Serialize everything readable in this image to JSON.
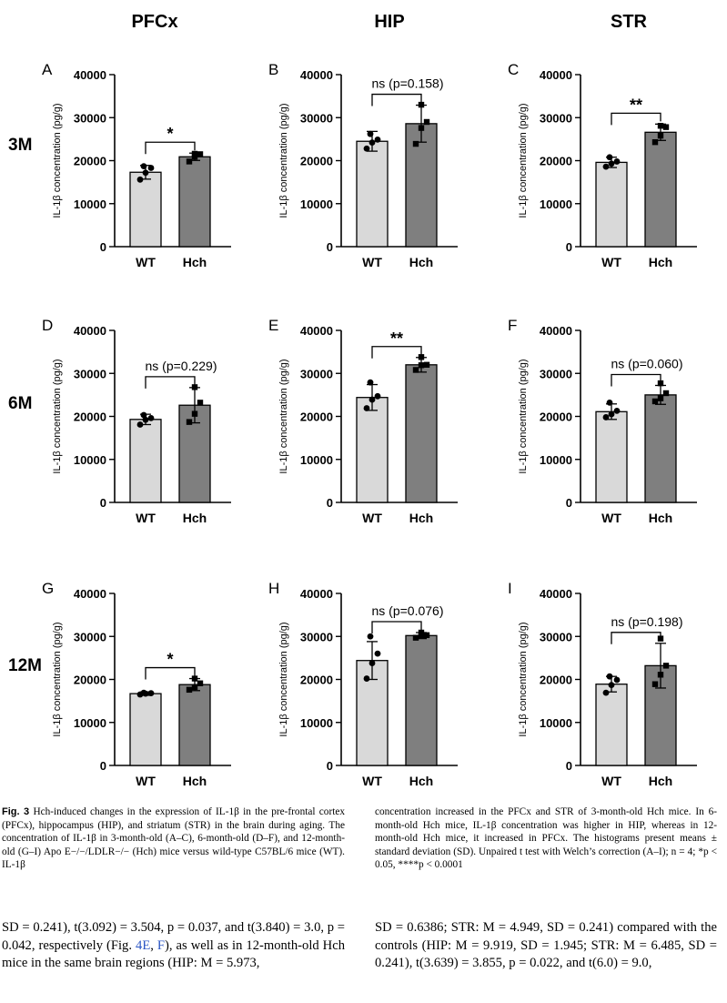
{
  "column_titles": [
    "PFCx",
    "HIP",
    "STR"
  ],
  "row_labels": [
    "3M",
    "6M",
    "12M"
  ],
  "colors": {
    "wt_bar": "#d9d9d9",
    "hch_bar": "#7f7f7f",
    "ink": "#000000",
    "link": "#2a55c4"
  },
  "chart_data": [
    {
      "panel": "A",
      "type": "bar",
      "categories": [
        "WT",
        "Hch"
      ],
      "values": [
        17300,
        20900
      ],
      "sd": [
        1600,
        850
      ],
      "points": [
        [
          15600,
          17200,
          18300,
          18700
        ],
        [
          19800,
          20900,
          21500,
          21600
        ]
      ],
      "ylabel": "IL-1β concentration (pg/g)",
      "yticks": [
        0,
        10000,
        20000,
        30000,
        40000
      ],
      "ylim": [
        0,
        40000
      ],
      "significance": "*"
    },
    {
      "panel": "B",
      "type": "bar",
      "categories": [
        "WT",
        "Hch"
      ],
      "values": [
        24500,
        28600
      ],
      "sd": [
        2300,
        4300
      ],
      "points": [
        [
          22800,
          24200,
          24900,
          26200
        ],
        [
          23900,
          27600,
          29000,
          33000
        ]
      ],
      "ylabel": "IL-1β concentration (pg/g)",
      "yticks": [
        0,
        10000,
        20000,
        30000,
        40000
      ],
      "ylim": [
        0,
        40000
      ],
      "significance": "ns (p=0.158)"
    },
    {
      "panel": "C",
      "type": "bar",
      "categories": [
        "WT",
        "Hch"
      ],
      "values": [
        19600,
        26600
      ],
      "sd": [
        1200,
        1900
      ],
      "points": [
        [
          18600,
          19300,
          19800,
          20800
        ],
        [
          24300,
          25800,
          27800,
          28100
        ]
      ],
      "ylabel": "IL-1β concentration (pg/g)",
      "yticks": [
        0,
        10000,
        20000,
        30000,
        40000
      ],
      "ylim": [
        0,
        40000
      ],
      "significance": "**"
    },
    {
      "panel": "D",
      "type": "bar",
      "categories": [
        "WT",
        "Hch"
      ],
      "values": [
        19300,
        22600
      ],
      "sd": [
        1200,
        4100
      ],
      "points": [
        [
          18100,
          19200,
          19600,
          20300
        ],
        [
          18700,
          20600,
          23200,
          26800
        ]
      ],
      "ylabel": "IL-1β concentration (pg/g)",
      "yticks": [
        0,
        10000,
        20000,
        30000,
        40000
      ],
      "ylim": [
        0,
        40000
      ],
      "significance": "ns (p=0.229)"
    },
    {
      "panel": "E",
      "type": "bar",
      "categories": [
        "WT",
        "Hch"
      ],
      "values": [
        24400,
        32000
      ],
      "sd": [
        3000,
        1700
      ],
      "points": [
        [
          21900,
          23900,
          24700,
          27900
        ],
        [
          30800,
          31900,
          32000,
          33800
        ]
      ],
      "ylabel": "IL-1β concentration (pg/g)",
      "yticks": [
        0,
        10000,
        20000,
        30000,
        40000
      ],
      "ylim": [
        0,
        40000
      ],
      "significance": "**"
    },
    {
      "panel": "F",
      "type": "bar",
      "categories": [
        "WT",
        "Hch"
      ],
      "values": [
        21100,
        25000
      ],
      "sd": [
        1800,
        2200
      ],
      "points": [
        [
          19800,
          20500,
          21300,
          23200
        ],
        [
          23500,
          24200,
          25400,
          27700
        ]
      ],
      "ylabel": "IL-1β concentration (pg/g)",
      "yticks": [
        0,
        10000,
        20000,
        30000,
        40000
      ],
      "ylim": [
        0,
        40000
      ],
      "significance": "ns (p=0.060)"
    },
    {
      "panel": "G",
      "type": "bar",
      "categories": [
        "WT",
        "Hch"
      ],
      "values": [
        16700,
        18800
      ],
      "sd": [
        400,
        1400
      ],
      "points": [
        [
          16500,
          16700,
          16800,
          16900
        ],
        [
          17600,
          18200,
          19100,
          20200
        ]
      ],
      "ylabel": "IL-1β concentration (pg/g)",
      "yticks": [
        0,
        10000,
        20000,
        30000,
        40000
      ],
      "ylim": [
        0,
        40000
      ],
      "significance": "*"
    },
    {
      "panel": "H",
      "type": "bar",
      "categories": [
        "WT",
        "Hch"
      ],
      "values": [
        24400,
        30200
      ],
      "sd": [
        4400,
        700
      ],
      "points": [
        [
          20200,
          23800,
          26000,
          30000
        ],
        [
          29700,
          30100,
          30300,
          30900
        ]
      ],
      "ylabel": "IL-1β concentration (pg/g)",
      "yticks": [
        0,
        10000,
        20000,
        30000,
        40000
      ],
      "ylim": [
        0,
        40000
      ],
      "significance": "ns (p=0.076)"
    },
    {
      "panel": "I",
      "type": "bar",
      "categories": [
        "WT",
        "Hch"
      ],
      "values": [
        18900,
        23200
      ],
      "sd": [
        1800,
        5200
      ],
      "points": [
        [
          16900,
          18700,
          19900,
          20700
        ],
        [
          18900,
          21100,
          23200,
          29500
        ]
      ],
      "ylabel": "IL-1β concentration (pg/g)",
      "yticks": [
        0,
        10000,
        20000,
        30000,
        40000
      ],
      "ylim": [
        0,
        40000
      ],
      "significance": "ns (p=0.198)"
    }
  ],
  "caption": {
    "fig_label": "Fig. 3",
    "left": "Hch-induced changes in the expression of IL-1β in the pre-frontal cortex (PFCx), hippocampus (HIP), and striatum (STR) in the brain during aging. The concentration of IL-1β in 3-month-old (A–C), 6-month-old (D–F), and 12-month-old (G–I) Apo E−/−/LDLR−/− (Hch) mice versus wild-type C57BL/6 mice (WT). IL-1β",
    "right": "concentration increased in the PFCx and STR of 3-month-old Hch mice. In 6-month-old Hch mice, IL-1β concentration was higher in HIP, whereas in 12-month-old Hch mice, it increased in PFCx. The histograms present means ± standard deviation (SD). Unpaired t test with Welch’s correction (A–I); n = 4; *p < 0.05, ****p < 0.0001"
  },
  "body": {
    "left_a": "SD = 0.241), t(3.092) = 3.504, p = 0.037, and t(3.840) = 3.0, p = 0.042, respectively (Fig. ",
    "ref1": "4E",
    "left_b": ", ",
    "ref2": "F",
    "left_c": "), as well as in 12-month-old Hch mice in the same brain regions (HIP: M = 5.973,",
    "right": "SD = 0.6386; STR: M = 4.949, SD = 0.241) compared with the controls (HIP: M = 9.919, SD = 1.945; STR: M = 6.485, SD = 0.241), t(3.639) = 3.855, p = 0.022, and t(6.0) = 9.0,"
  }
}
